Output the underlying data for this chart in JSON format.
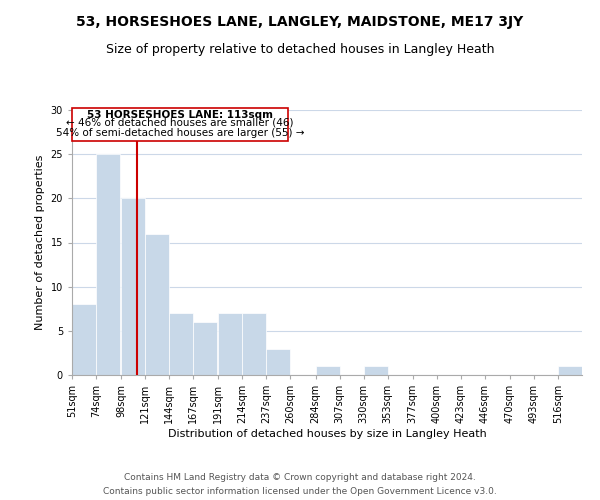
{
  "title": "53, HORSESHOES LANE, LANGLEY, MAIDSTONE, ME17 3JY",
  "subtitle": "Size of property relative to detached houses in Langley Heath",
  "xlabel": "Distribution of detached houses by size in Langley Heath",
  "ylabel": "Number of detached properties",
  "footer_line1": "Contains HM Land Registry data © Crown copyright and database right 2024.",
  "footer_line2": "Contains public sector information licensed under the Open Government Licence v3.0.",
  "annotation_line1": "53 HORSESHOES LANE: 113sqm",
  "annotation_line2": "← 46% of detached houses are smaller (46)",
  "annotation_line3": "54% of semi-detached houses are larger (55) →",
  "bar_color": "#c8d8e8",
  "vline_color": "#cc0000",
  "vline_x": 113,
  "categories": [
    "51sqm",
    "74sqm",
    "98sqm",
    "121sqm",
    "144sqm",
    "167sqm",
    "191sqm",
    "214sqm",
    "237sqm",
    "260sqm",
    "284sqm",
    "307sqm",
    "330sqm",
    "353sqm",
    "377sqm",
    "400sqm",
    "423sqm",
    "446sqm",
    "470sqm",
    "493sqm",
    "516sqm"
  ],
  "bin_edges": [
    51,
    74,
    98,
    121,
    144,
    167,
    191,
    214,
    237,
    260,
    284,
    307,
    330,
    353,
    377,
    400,
    423,
    446,
    470,
    493,
    516
  ],
  "values": [
    8,
    25,
    20,
    16,
    7,
    6,
    7,
    7,
    3,
    0,
    1,
    0,
    1,
    0,
    0,
    0,
    0,
    0,
    0,
    0,
    1
  ],
  "ylim": [
    0,
    30
  ],
  "yticks": [
    0,
    5,
    10,
    15,
    20,
    25,
    30
  ],
  "bg_color": "#ffffff",
  "grid_color": "#ccd8e8",
  "title_fontsize": 10,
  "subtitle_fontsize": 9,
  "axis_label_fontsize": 8,
  "tick_fontsize": 7,
  "footer_fontsize": 6.5
}
